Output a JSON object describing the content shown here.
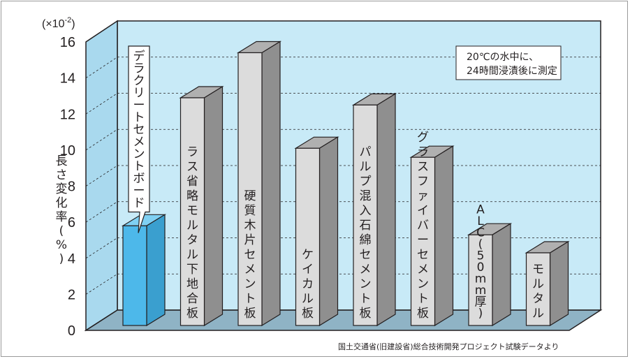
{
  "chart_data": {
    "type": "bar",
    "multiplier": "(×10-2)",
    "ylabel": "長さ変化率(%)",
    "ylim": [
      0,
      16
    ],
    "yticks": [
      "0",
      "2",
      "4",
      "6",
      "8",
      "10",
      "12",
      "14",
      "16"
    ],
    "grid": true,
    "categories": [
      "デラクリートセメントボード",
      "ラス省略モルタル下地合板",
      "硬質木片セメント板",
      "ケイカル板",
      "パルプ混入石綿セメント板",
      "グラスファイバーセメント板",
      "ALC(50mm厚)",
      "モルタル"
    ],
    "values": [
      5.8,
      12.9,
      15.4,
      10.1,
      12.5,
      9.6,
      5.3,
      4.3
    ],
    "annotation": [
      "20℃の水中に、",
      "24時間浸漬後に測定"
    ],
    "source": "国土交通省(旧建設省)総合技術開発プロジェクト試験データより",
    "colors": {
      "highlight_bar": "#4db8ea",
      "bar": "#dcdcdc",
      "background": "#c8eaf7"
    }
  }
}
